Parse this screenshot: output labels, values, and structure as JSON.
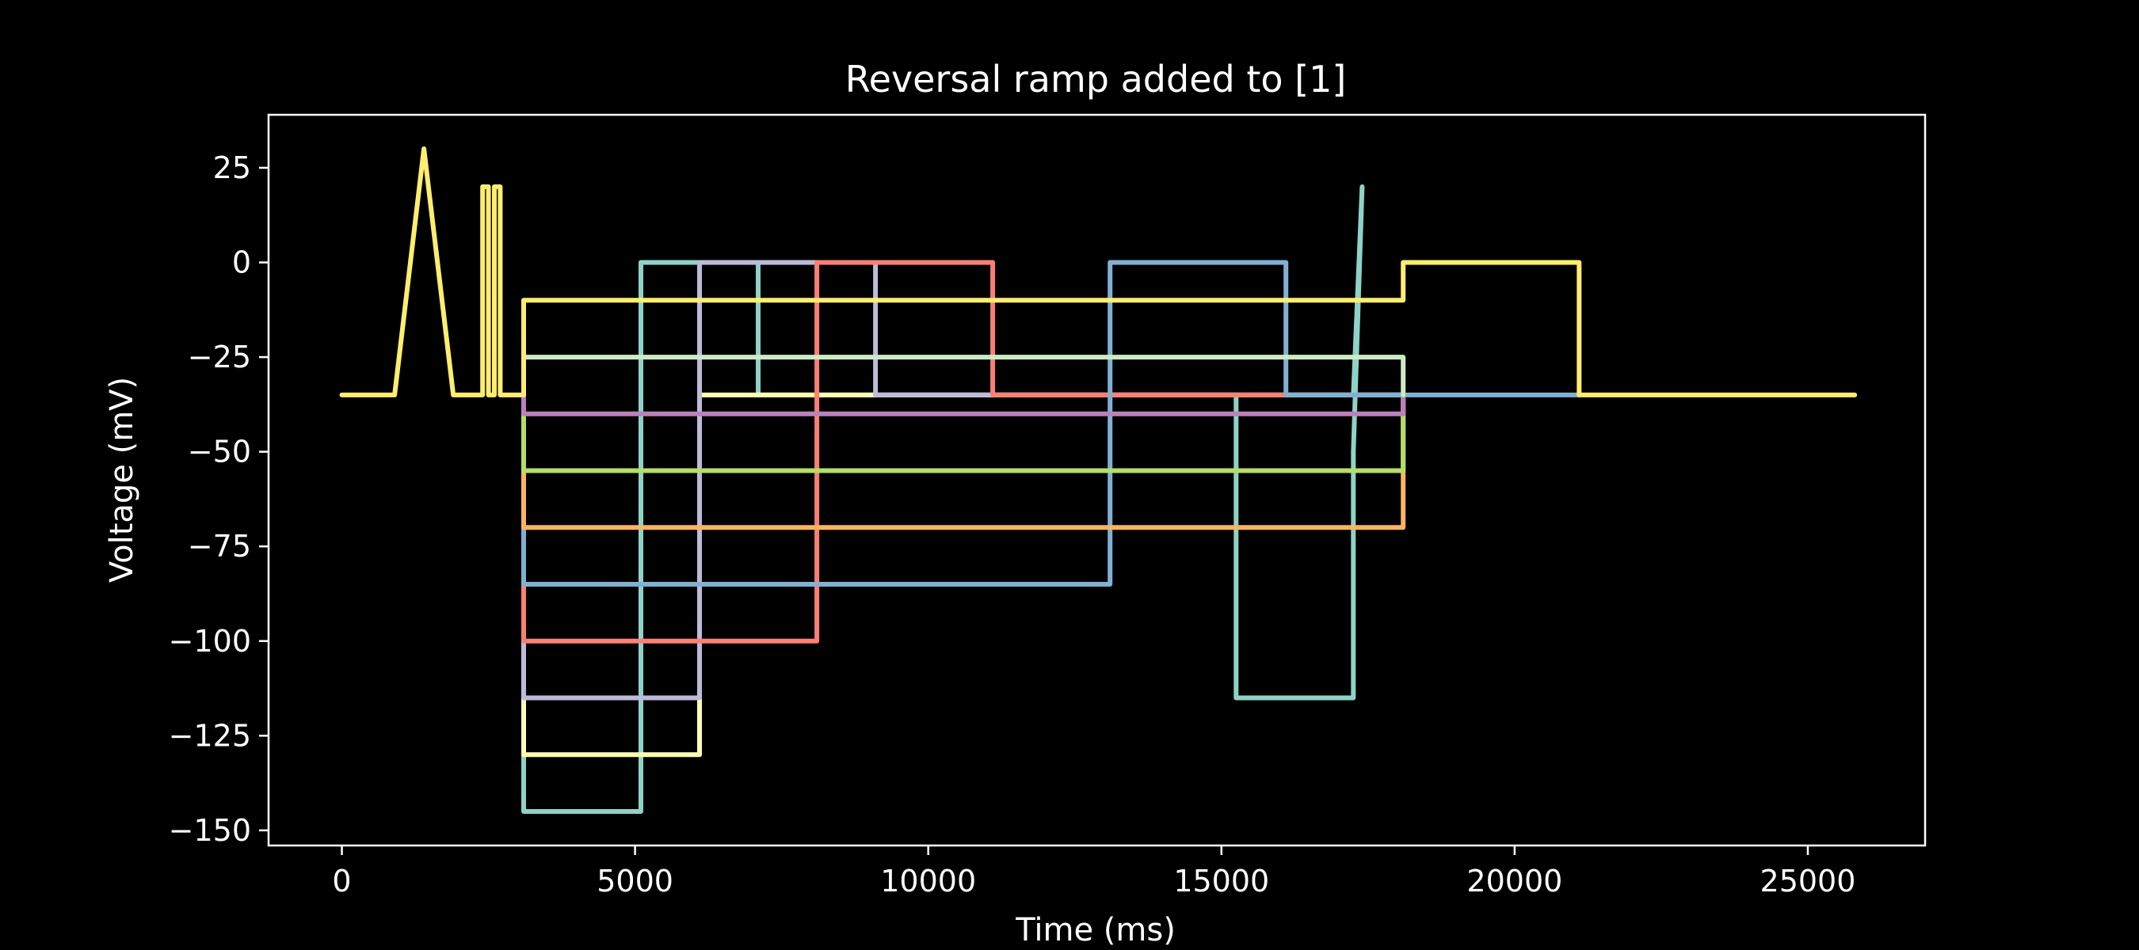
{
  "chart_data": {
    "type": "line",
    "title": "Reversal ramp added to [1]",
    "xlabel": "Time (ms)",
    "ylabel": "Voltage (mV)",
    "xlim": [
      -1250,
      27000
    ],
    "ylim": [
      -154,
      39
    ],
    "xticks": [
      0,
      5000,
      10000,
      15000,
      20000,
      25000
    ],
    "xtick_labels": [
      "0",
      "5000",
      "10000",
      "15000",
      "20000",
      "25000"
    ],
    "yticks": [
      25,
      0,
      -25,
      -50,
      -75,
      -100,
      -125,
      -150
    ],
    "ytick_labels": [
      "25",
      "0",
      "−25",
      "−50",
      "−75",
      "−100",
      "−125",
      "−150"
    ],
    "grid": false,
    "background": "#000000",
    "foreground": "#ffffff",
    "series": [
      {
        "color": "#8dd3c7",
        "points": [
          [
            3100,
            -35
          ],
          [
            3100,
            -145
          ],
          [
            5100,
            -145
          ],
          [
            5100,
            0
          ],
          [
            7100,
            0
          ],
          [
            7100,
            -35
          ],
          [
            15250,
            -35
          ],
          [
            15250,
            -115
          ],
          [
            17250,
            -115
          ],
          [
            17250,
            -50
          ],
          [
            17400,
            20
          ],
          [
            17250,
            -35
          ],
          [
            18100,
            -35
          ]
        ]
      },
      {
        "color": "#ffffb3",
        "points": [
          [
            3100,
            -35
          ],
          [
            3100,
            -130
          ],
          [
            6100,
            -130
          ],
          [
            6100,
            -35
          ],
          [
            18100,
            -35
          ]
        ]
      },
      {
        "color": "#bebada",
        "points": [
          [
            3100,
            -35
          ],
          [
            3100,
            -115
          ],
          [
            6100,
            -115
          ],
          [
            6100,
            0
          ],
          [
            9100,
            0
          ],
          [
            9100,
            -35
          ],
          [
            18100,
            -35
          ]
        ]
      },
      {
        "color": "#fb8072",
        "points": [
          [
            3100,
            -35
          ],
          [
            3100,
            -100
          ],
          [
            8100,
            -100
          ],
          [
            8100,
            0
          ],
          [
            11100,
            0
          ],
          [
            11100,
            -35
          ],
          [
            18100,
            -35
          ]
        ]
      },
      {
        "color": "#80b1d3",
        "points": [
          [
            3100,
            -35
          ],
          [
            3100,
            -85
          ],
          [
            13100,
            -85
          ],
          [
            13100,
            0
          ],
          [
            16100,
            0
          ],
          [
            16100,
            -35
          ],
          [
            21100,
            -35
          ]
        ]
      },
      {
        "color": "#fdb462",
        "points": [
          [
            3100,
            -35
          ],
          [
            3100,
            -70
          ],
          [
            18100,
            -70
          ],
          [
            18100,
            -35
          ]
        ]
      },
      {
        "color": "#b3de69",
        "points": [
          [
            3100,
            -35
          ],
          [
            3100,
            -55
          ],
          [
            18100,
            -55
          ],
          [
            18100,
            -35
          ]
        ]
      },
      {
        "color": "#bc80bd",
        "points": [
          [
            3100,
            -35
          ],
          [
            3100,
            -40
          ],
          [
            18100,
            -40
          ],
          [
            18100,
            -35
          ]
        ]
      },
      {
        "color": "#ccebc5",
        "points": [
          [
            3100,
            -35
          ],
          [
            3100,
            -25
          ],
          [
            18100,
            -25
          ],
          [
            18100,
            -35
          ]
        ]
      },
      {
        "color": "#ffed6f",
        "points": [
          [
            0,
            -35
          ],
          [
            900,
            -35
          ],
          [
            1400,
            30
          ],
          [
            1900,
            -35
          ],
          [
            2400,
            -35
          ],
          [
            2400,
            20
          ],
          [
            2500,
            20
          ],
          [
            2500,
            -35
          ],
          [
            2600,
            -35
          ],
          [
            2600,
            20
          ],
          [
            2700,
            20
          ],
          [
            2700,
            -35
          ],
          [
            3100,
            -35
          ],
          [
            3100,
            -10
          ],
          [
            18100,
            -10
          ],
          [
            18100,
            0
          ],
          [
            21100,
            0
          ],
          [
            21100,
            -35
          ],
          [
            25800,
            -35
          ]
        ]
      }
    ]
  }
}
